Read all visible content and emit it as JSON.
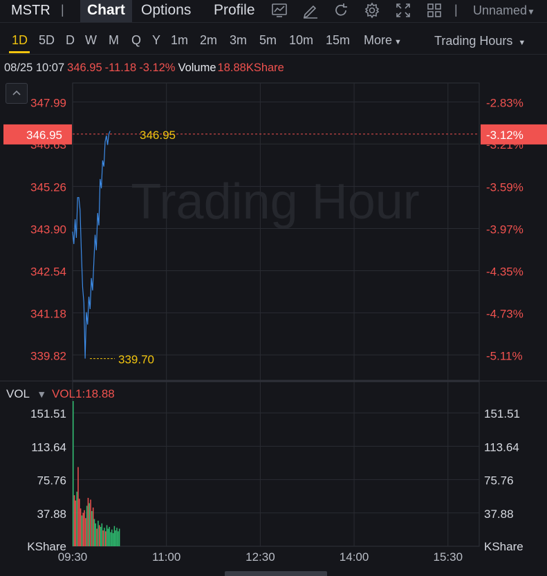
{
  "header": {
    "symbol": "MSTR",
    "separator": "|",
    "tabs": [
      "Chart",
      "Options",
      "Profile"
    ],
    "layout_name": "Unnamed",
    "icons": [
      "line-chart-icon",
      "draw-pen-icon",
      "refresh-icon",
      "settings-gear-icon",
      "fullscreen-icon",
      "grid-layout-icon"
    ]
  },
  "periods": {
    "items": [
      "1D",
      "5D",
      "D",
      "W",
      "M",
      "Q",
      "Y",
      "1m",
      "2m",
      "3m",
      "5m",
      "10m",
      "15m",
      "More"
    ],
    "active": "1D",
    "session": "Trading Hours"
  },
  "info": {
    "datetime": "08/25 10:07",
    "price": "346.95",
    "change": "-11.18",
    "change_pct": "-3.12%",
    "volume_label": "Volume",
    "volume_value": "18.88KShare"
  },
  "colors": {
    "down": "#f0524f",
    "up": "#2fbf71",
    "line": "#3d8ce8",
    "highlight": "#f1c40f",
    "background": "#15161b",
    "grid": "#2a2c33"
  },
  "chart_data": [
    {
      "type": "line",
      "title": "",
      "watermark": "Trading Hour",
      "x_ticks": [
        "09:30",
        "11:00",
        "12:30",
        "14:00",
        "15:30"
      ],
      "ylim": [
        339.0,
        348.6
      ],
      "y_ticks": [
        "347.99",
        "346.63",
        "345.26",
        "343.90",
        "342.54",
        "341.18",
        "339.82"
      ],
      "y_ticks_pct": [
        "-2.83%",
        "-3.21%",
        "-3.59%",
        "-3.97%",
        "-4.35%",
        "-4.73%",
        "-5.11%"
      ],
      "current_price": "346.95",
      "current_pct": "-3.12%",
      "low_label": "339.70",
      "series": [
        {
          "minutes_from_open": [
            0,
            1,
            2,
            3,
            4,
            5,
            6,
            7,
            8,
            9,
            10,
            11,
            12,
            13,
            14,
            15,
            16,
            17,
            18,
            19,
            20,
            21,
            22,
            23,
            24,
            25,
            26,
            27,
            28,
            29,
            30,
            31,
            32,
            33,
            34,
            35,
            36,
            37
          ],
          "values": [
            343.8,
            343.4,
            344.2,
            343.6,
            344.9,
            344.9,
            344.5,
            343.1,
            342.0,
            341.5,
            339.7,
            341.2,
            340.8,
            341.7,
            341.3,
            342.3,
            341.9,
            342.8,
            343.7,
            343.2,
            344.4,
            344.0,
            345.5,
            345.2,
            346.1,
            345.9,
            346.7,
            346.9,
            346.6,
            346.95,
            347.05,
            346.95,
            346.95,
            346.95,
            346.95,
            346.95,
            346.95,
            346.95
          ]
        }
      ]
    },
    {
      "type": "bar",
      "indicator_label": "VOL",
      "indicator_value": "VOL1:18.88",
      "unit": "KShare",
      "ylim": [
        0,
        165
      ],
      "y_ticks": [
        "151.51",
        "113.64",
        "75.76",
        "37.88"
      ],
      "series": [
        {
          "name": "VOL",
          "values": [
            165,
            58,
            52,
            62,
            90,
            54,
            43,
            35,
            38,
            41,
            32,
            46,
            55,
            49,
            53,
            40,
            44,
            31,
            26,
            20,
            29,
            24,
            22,
            26,
            18,
            21,
            17,
            24,
            20,
            22,
            16,
            19,
            15,
            23,
            18,
            21,
            17,
            20
          ],
          "direction": [
            "up",
            "down",
            "down",
            "up",
            "down",
            "down",
            "down",
            "up",
            "down",
            "down",
            "down",
            "up",
            "down",
            "up",
            "down",
            "up",
            "down",
            "up",
            "up",
            "down",
            "up",
            "down",
            "up",
            "up",
            "down",
            "up",
            "down",
            "up",
            "up",
            "up",
            "up",
            "up",
            "up",
            "up",
            "up",
            "up",
            "up",
            "up"
          ]
        }
      ]
    }
  ]
}
